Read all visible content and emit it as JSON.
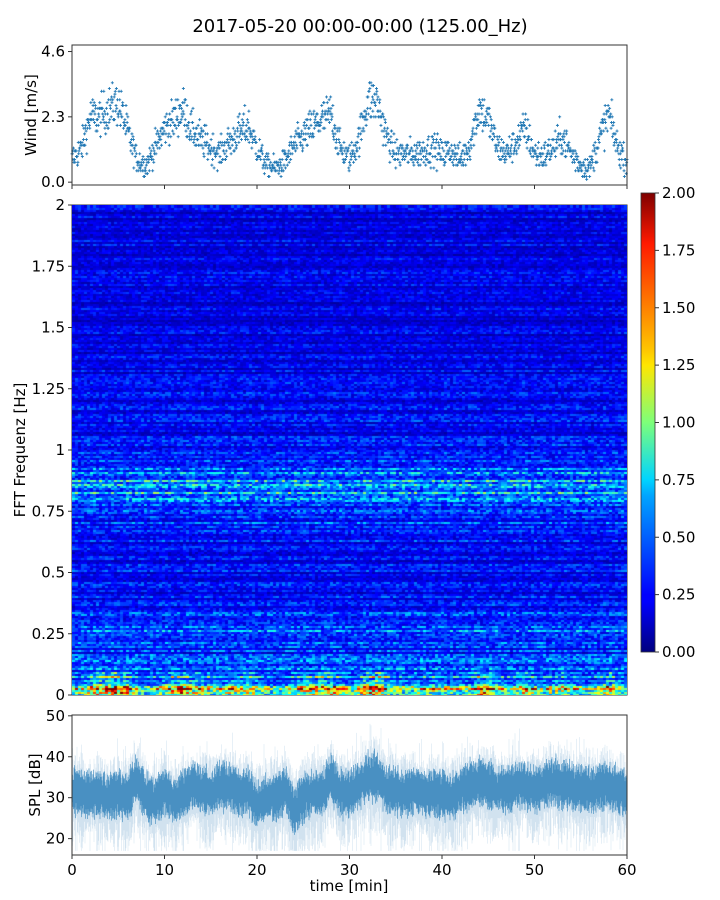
{
  "title": "2017-05-20 00:00-00:00 (125.00_Hz)",
  "chart_data": [
    {
      "type": "scatter",
      "name": "wind",
      "ylabel": "Wind [m/s]",
      "xlim": [
        0,
        60
      ],
      "ylim": [
        -0.1,
        4.83
      ],
      "yticks": [
        0.0,
        2.3,
        4.6
      ],
      "ytick_labels": [
        "0.0",
        "2.3",
        "4.6"
      ],
      "color": "#1f77b4",
      "marker": "+",
      "x_minutes": [
        0,
        1,
        2,
        3,
        4,
        5,
        6,
        7,
        8,
        9,
        10,
        11,
        12,
        13,
        14,
        15,
        16,
        17,
        18,
        19,
        20,
        21,
        22,
        23,
        24,
        25,
        26,
        27,
        28,
        29,
        30,
        31,
        32,
        33,
        34,
        35,
        36,
        37,
        38,
        39,
        40,
        41,
        42,
        43,
        44,
        45,
        46,
        47,
        48,
        49,
        50,
        51,
        52,
        53,
        54,
        55,
        56,
        57,
        58,
        59,
        60
      ],
      "wind_mean": [
        0.8,
        1.2,
        2.3,
        2.3,
        2.6,
        2.8,
        1.8,
        0.8,
        0.6,
        1.2,
        1.9,
        2.2,
        2.6,
        1.8,
        1.5,
        1.2,
        1.0,
        1.4,
        1.7,
        2.0,
        1.2,
        0.6,
        0.5,
        0.7,
        1.3,
        1.6,
        1.9,
        2.2,
        2.4,
        1.2,
        0.8,
        1.5,
        2.9,
        2.8,
        1.6,
        1.0,
        1.0,
        1.0,
        1.1,
        1.2,
        1.0,
        1.1,
        0.8,
        1.3,
        2.6,
        2.2,
        1.2,
        1.0,
        1.4,
        1.9,
        1.0,
        0.9,
        1.2,
        1.6,
        1.0,
        0.6,
        0.5,
        1.5,
        2.4,
        1.2,
        0.7
      ]
    },
    {
      "type": "heatmap",
      "name": "spectrogram",
      "ylabel": "FFT Frequenz [Hz]",
      "xlim": [
        0,
        60
      ],
      "ylim": [
        0,
        2
      ],
      "yticks": [
        0,
        0.25,
        0.5,
        0.75,
        1,
        1.25,
        1.5,
        1.75,
        2
      ],
      "ytick_labels": [
        "0",
        "0.25",
        "0.5",
        "0.75",
        "1",
        "1.25",
        "1.5",
        "1.75",
        "2"
      ],
      "colormap": "jet",
      "clim": [
        0,
        2
      ],
      "colorbar_ticks": [
        "0.00",
        "0.25",
        "0.50",
        "0.75",
        "1.00",
        "1.25",
        "1.50",
        "1.75",
        "2.00"
      ],
      "band_profile": {
        "freq_hz": [
          0,
          0.03,
          0.06,
          0.1,
          0.2,
          0.27,
          0.35,
          0.6,
          0.8,
          0.85,
          0.9,
          1.0,
          1.5,
          2.0
        ],
        "mean_level": [
          1.5,
          1.0,
          0.6,
          0.4,
          0.3,
          0.45,
          0.28,
          0.25,
          0.4,
          0.7,
          0.45,
          0.25,
          0.2,
          0.2
        ]
      }
    },
    {
      "type": "area",
      "name": "spl",
      "ylabel": "SPL [dB]",
      "xlabel": "time [min]",
      "xlim": [
        0,
        60
      ],
      "ylim": [
        16,
        50.2
      ],
      "xticks": [
        0,
        10,
        20,
        30,
        40,
        50,
        60
      ],
      "xtick_labels": [
        "0",
        "10",
        "20",
        "30",
        "40",
        "50",
        "60"
      ],
      "yticks": [
        20,
        30,
        40,
        50
      ],
      "ytick_labels": [
        "20",
        "30",
        "40",
        "50"
      ],
      "color": "#1f77b4",
      "x_minutes": [
        0,
        1,
        2,
        3,
        4,
        5,
        6,
        7,
        8,
        9,
        10,
        11,
        12,
        13,
        14,
        15,
        16,
        17,
        18,
        19,
        20,
        21,
        22,
        23,
        24,
        25,
        26,
        27,
        28,
        29,
        30,
        31,
        32,
        33,
        34,
        35,
        36,
        37,
        38,
        39,
        40,
        41,
        42,
        43,
        44,
        45,
        46,
        47,
        48,
        49,
        50,
        51,
        52,
        53,
        54,
        55,
        56,
        57,
        58,
        59,
        60
      ],
      "spl_mean": [
        32,
        31,
        31,
        31,
        30,
        31,
        30,
        35,
        30,
        29,
        32,
        29,
        31,
        33,
        32,
        31,
        33,
        33,
        31,
        32,
        28,
        30,
        30,
        32,
        27,
        30,
        31,
        31,
        35,
        31,
        31,
        33,
        35,
        35,
        32,
        32,
        31,
        32,
        31,
        31,
        31,
        30,
        32,
        33,
        34,
        33,
        32,
        32,
        33,
        33,
        32,
        33,
        34,
        33,
        33,
        32,
        32,
        33,
        33,
        32,
        31
      ]
    }
  ]
}
